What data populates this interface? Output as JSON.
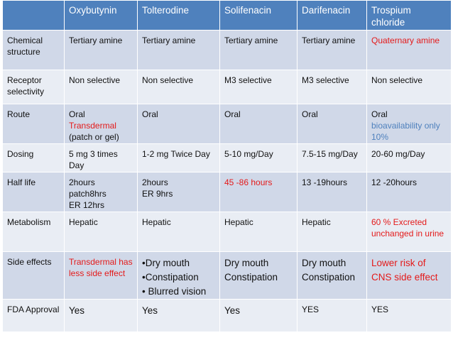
{
  "header": {
    "corner": "",
    "columns": [
      "Oxybutynin",
      "Tolterodine",
      "Solifenacin",
      "Darifenacin",
      "Trospium chloride"
    ]
  },
  "rows": [
    {
      "label": "Chemical structure",
      "cells": [
        [
          {
            "text": "Tertiary amine",
            "color": "default"
          }
        ],
        [
          {
            "text": "Tertiary amine",
            "color": "default"
          }
        ],
        [
          {
            "text": "Tertiary amine",
            "color": "default"
          }
        ],
        [
          {
            "text": "Tertiary amine",
            "color": "default"
          }
        ],
        [
          {
            "text": "Quaternary amine",
            "color": "red"
          }
        ]
      ]
    },
    {
      "label": "Receptor selectivity",
      "cells": [
        [
          {
            "text": "Non selective",
            "color": "default"
          }
        ],
        [
          {
            "text": "Non selective",
            "color": "default"
          }
        ],
        [
          {
            "text": "M3 selective",
            "color": "default"
          }
        ],
        [
          {
            "text": "M3 selective",
            "color": "default"
          }
        ],
        [
          {
            "text": " Non selective",
            "color": "default"
          }
        ]
      ]
    },
    {
      "label": "Route",
      "cells": [
        [
          {
            "text": "Oral",
            "color": "default"
          },
          {
            "text": "Transdermal",
            "color": "red"
          },
          {
            "text": "(patch or gel)",
            "color": "default"
          }
        ],
        [
          {
            "text": "Oral",
            "color": "default"
          }
        ],
        [
          {
            "text": "Oral",
            "color": "default"
          }
        ],
        [
          {
            "text": "Oral",
            "color": "default"
          }
        ],
        [
          {
            "text": "Oral",
            "color": "default"
          },
          {
            "text": "bioavailability only 10%",
            "color": "blue"
          }
        ]
      ]
    },
    {
      "label": "Dosing",
      "cells": [
        [
          {
            "text": "5 mg 3 times Day",
            "color": "default"
          }
        ],
        [
          {
            "text": "1-2 mg Twice Day",
            "color": "default"
          }
        ],
        [
          {
            "text": "5-10 mg/Day",
            "color": "default"
          }
        ],
        [
          {
            "text": "7.5-15 mg/Day",
            "color": "default"
          }
        ],
        [
          {
            "text": "20-60 mg/Day",
            "color": "default"
          }
        ]
      ]
    },
    {
      "label": "Half life",
      "cells": [
        [
          {
            "text": "2hours",
            "color": "default"
          },
          {
            "text": "patch8hrs",
            "color": "default"
          },
          {
            "text": "ER 12hrs",
            "color": "default"
          }
        ],
        [
          {
            "text": "2hours",
            "color": "default"
          },
          {
            "text": "ER 9hrs",
            "color": "default"
          }
        ],
        [
          {
            "text": "45 -86 hours",
            "color": "red"
          }
        ],
        [
          {
            "text": "13 -19hours",
            "color": "default"
          }
        ],
        [
          {
            "text": "12 -20hours",
            "color": "default"
          }
        ]
      ]
    },
    {
      "label": "Metabolism",
      "cells": [
        [
          {
            "text": "Hepatic",
            "color": "default"
          }
        ],
        [
          {
            "text": "Hepatic",
            "color": "default"
          }
        ],
        [
          {
            "text": "Hepatic",
            "color": "default"
          }
        ],
        [
          {
            "text": "Hepatic",
            "color": "default"
          }
        ],
        [
          {
            "text": "60 % Excreted unchanged in urine",
            "color": "red"
          }
        ]
      ]
    },
    {
      "label": "Side effects",
      "cells": [
        [
          {
            "text": "Transdermal has less side effect",
            "color": "red"
          }
        ],
        [
          {
            "text": "•Dry mouth",
            "color": "default",
            "big": true
          },
          {
            "text": "•Constipation",
            "color": "default",
            "big": true
          },
          {
            "text": "• Blurred vision",
            "color": "default",
            "big": true
          }
        ],
        [
          {
            "text": "Dry mouth",
            "color": "default",
            "big": true
          },
          {
            "text": "Constipation",
            "color": "default",
            "big": true
          }
        ],
        [
          {
            "text": "Dry mouth",
            "color": "default",
            "big": true
          },
          {
            "text": "Constipation",
            "color": "default",
            "big": true
          }
        ],
        [
          {
            "text": "Lower risk of CNS side effect",
            "color": "red",
            "big": true
          }
        ]
      ]
    },
    {
      "label": "FDA Approval",
      "cells": [
        [
          {
            "text": "Yes",
            "color": "default",
            "big": true
          }
        ],
        [
          {
            "text": "Yes",
            "color": "default",
            "big": true
          }
        ],
        [
          {
            "text": "Yes",
            "color": "default",
            "big": true
          }
        ],
        [
          {
            "text": "YES",
            "color": "default"
          }
        ],
        [
          {
            "text": "YES",
            "color": "default"
          }
        ]
      ]
    }
  ]
}
